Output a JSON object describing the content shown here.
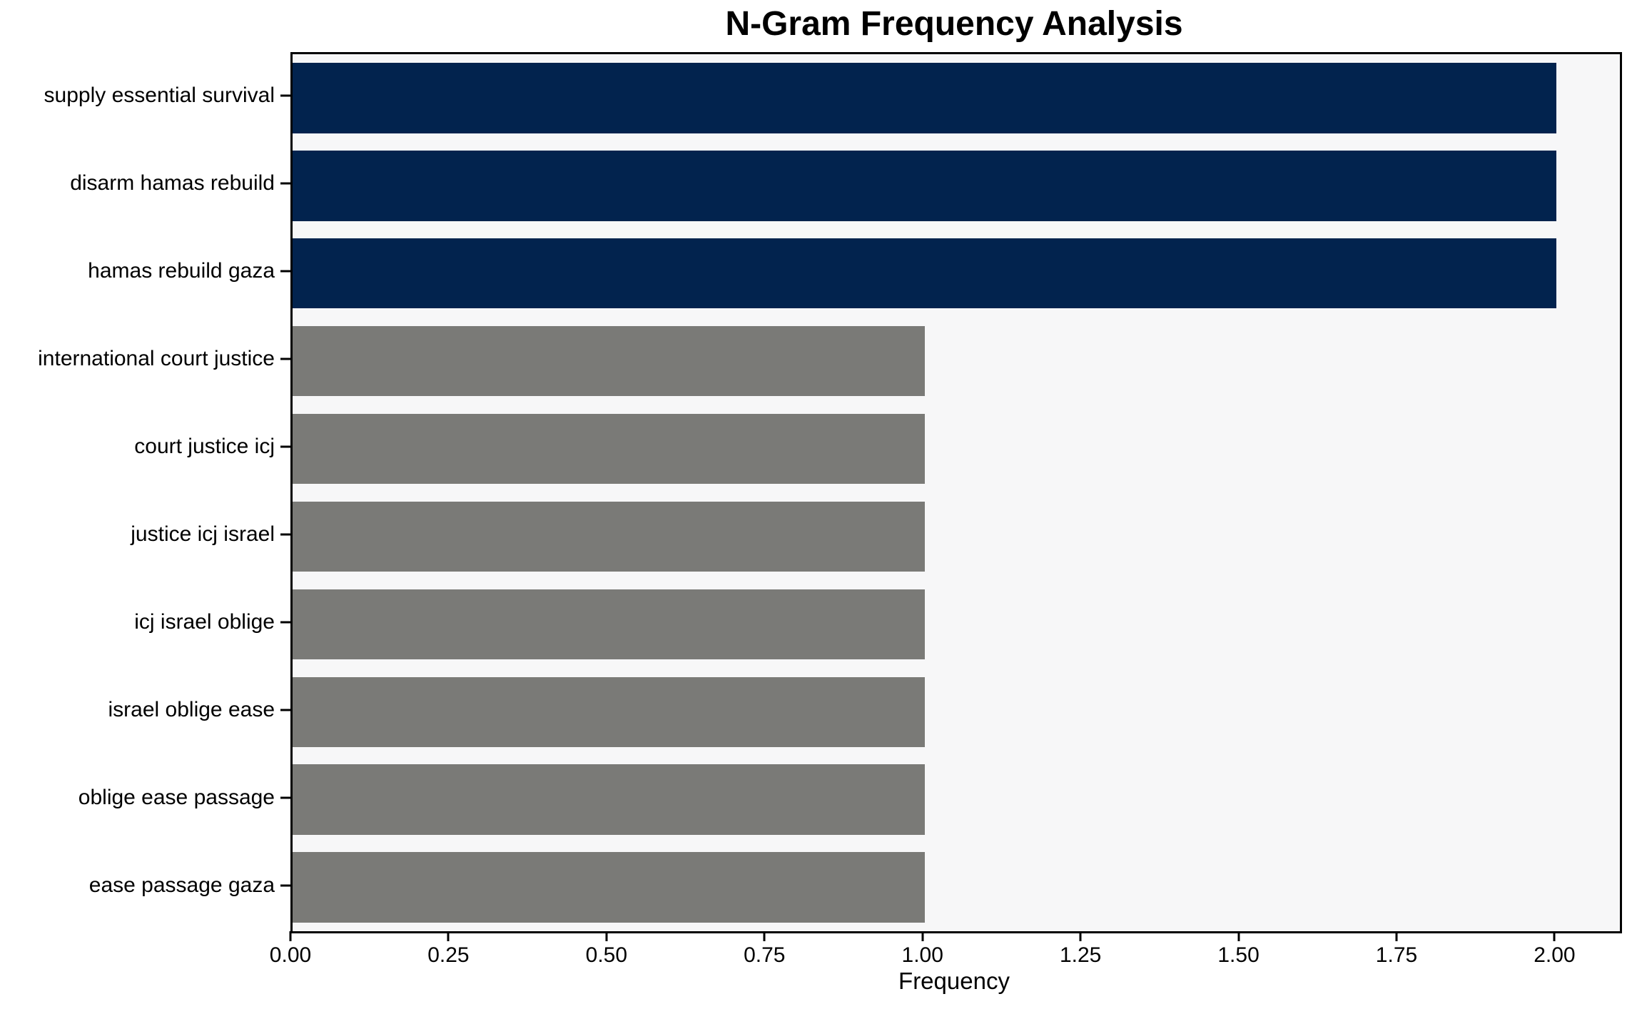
{
  "title": "N-Gram Frequency Analysis",
  "chart_data": {
    "type": "bar",
    "orientation": "horizontal",
    "title": "N-Gram Frequency Analysis",
    "xlabel": "Frequency",
    "ylabel": "",
    "categories": [
      "supply essential survival",
      "disarm hamas rebuild",
      "hamas rebuild gaza",
      "international court justice",
      "court justice icj",
      "justice icj israel",
      "icj israel oblige",
      "israel oblige ease",
      "oblige ease passage",
      "ease passage gaza"
    ],
    "values": [
      2,
      2,
      2,
      1,
      1,
      1,
      1,
      1,
      1,
      1
    ],
    "bar_colors": [
      "#02234E",
      "#02234E",
      "#02234E",
      "#7A7A77",
      "#7A7A77",
      "#7A7A77",
      "#7A7A77",
      "#7A7A77",
      "#7A7A77",
      "#7A7A77"
    ],
    "xlim": [
      0,
      2.1
    ],
    "xticks": [
      "0.00",
      "0.25",
      "0.50",
      "0.75",
      "1.00",
      "1.25",
      "1.50",
      "1.75",
      "2.00"
    ],
    "xtick_values": [
      0,
      0.25,
      0.5,
      0.75,
      1.0,
      1.25,
      1.5,
      1.75,
      2.0
    ],
    "grid": false,
    "legend": null,
    "plot_background": "#F7F7F8",
    "figure_background": "#FFFFFF",
    "colors": {
      "high_freq": "#02234E",
      "low_freq": "#7A7A77"
    }
  }
}
